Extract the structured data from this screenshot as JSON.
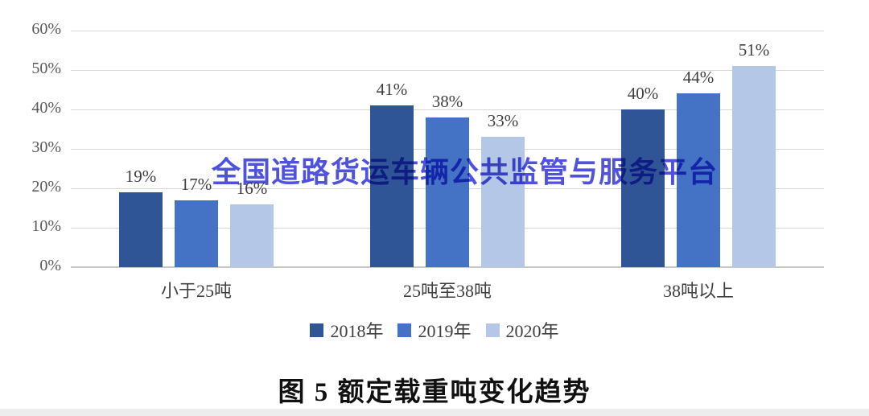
{
  "watermark": {
    "text": "全国道路货运车辆公共监管与服务平台",
    "color": "#3a3fd9"
  },
  "caption": {
    "text": "图 5  额定载重吨变化趋势"
  },
  "chart_data": {
    "type": "bar",
    "title": "图 5 额定载重吨变化趋势",
    "categories": [
      "小于25吨",
      "25吨至38吨",
      "38吨以上"
    ],
    "series": [
      {
        "name": "2018年",
        "color": "#2F5597",
        "values": [
          19,
          41,
          40
        ]
      },
      {
        "name": "2019年",
        "color": "#4472C4",
        "values": [
          17,
          38,
          44
        ]
      },
      {
        "name": "2020年",
        "color": "#B4C7E7",
        "values": [
          16,
          33,
          51
        ]
      }
    ],
    "data_label_suffix": "%",
    "xlabel": "",
    "ylabel": "",
    "ylim": [
      0,
      60
    ],
    "ytick_step": 10,
    "ytick_labels": [
      "0%",
      "10%",
      "20%",
      "30%",
      "40%",
      "50%",
      "60%"
    ],
    "grid": true,
    "gridline_color": "#d6d6d6",
    "legend_position": "bottom"
  }
}
